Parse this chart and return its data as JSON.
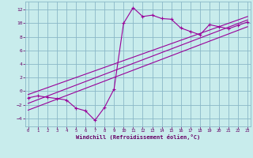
{
  "xlabel": "Windchill (Refroidissement éolien,°C)",
  "bg_color": "#c8ecec",
  "grid_color": "#8ab8c8",
  "line_color": "#990099",
  "text_color": "#660066",
  "xlim": [
    -0.3,
    23.3
  ],
  "ylim": [
    -5.2,
    13.2
  ],
  "xticks": [
    0,
    1,
    2,
    3,
    4,
    5,
    6,
    7,
    8,
    9,
    10,
    11,
    12,
    13,
    14,
    15,
    16,
    17,
    18,
    19,
    20,
    21,
    22,
    23
  ],
  "yticks": [
    -4,
    -2,
    0,
    2,
    4,
    6,
    8,
    10,
    12
  ],
  "data_x": [
    0,
    1,
    2,
    3,
    4,
    5,
    6,
    7,
    8,
    9,
    10,
    11,
    12,
    13,
    14,
    15,
    16,
    17,
    18,
    19,
    20,
    21,
    22,
    23
  ],
  "data_y": [
    -1.0,
    -0.7,
    -0.9,
    -1.1,
    -1.3,
    -2.5,
    -2.9,
    -4.3,
    -2.4,
    0.3,
    10.0,
    12.3,
    11.0,
    11.2,
    10.7,
    10.6,
    9.3,
    8.8,
    8.3,
    9.8,
    9.5,
    9.2,
    9.7,
    10.2
  ],
  "line1_x": [
    0,
    23
  ],
  "line1_y": [
    -1.8,
    10.5
  ],
  "line2_x": [
    0,
    23
  ],
  "line2_y": [
    -2.8,
    9.5
  ],
  "line3_x": [
    0,
    23
  ],
  "line3_y": [
    -0.5,
    11.0
  ]
}
